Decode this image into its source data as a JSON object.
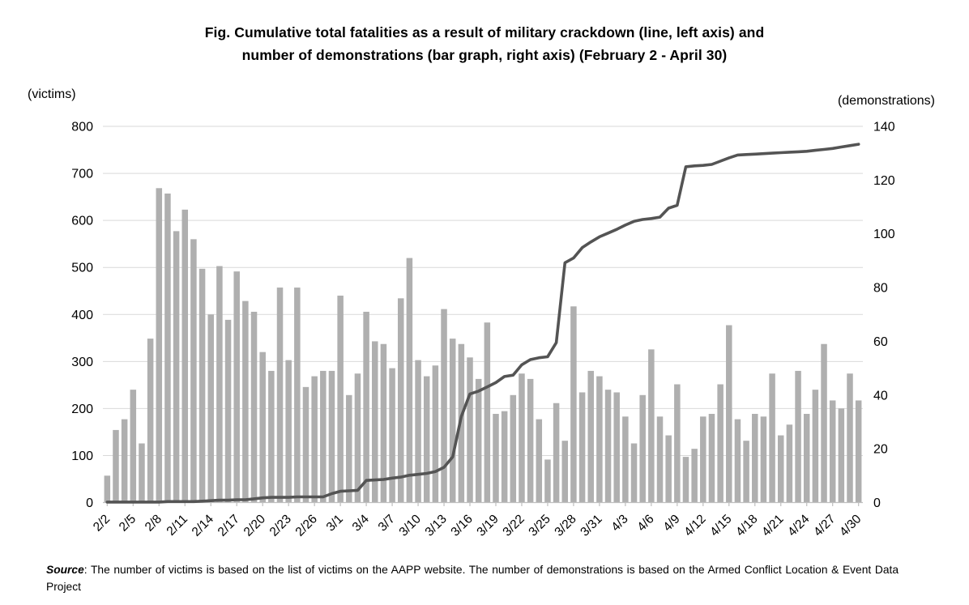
{
  "title": {
    "line1": "Fig. Cumulative total fatalities as a result of military crackdown (line, left axis) and",
    "line2": "number of demonstrations (bar graph, right axis) (February 2 - April 30)"
  },
  "left_axis": {
    "header": "(victims)",
    "ticks": [
      0,
      100,
      200,
      300,
      400,
      500,
      600,
      700,
      800
    ],
    "max": 800
  },
  "right_axis": {
    "header": "(demonstrations)",
    "ticks": [
      0,
      20,
      40,
      60,
      80,
      100,
      120,
      140
    ],
    "max": 140
  },
  "source": {
    "label": "Source",
    "text": ": The number of victims is based on the list of victims on the AAPP website. The number of demonstrations is based on the Armed Conflict Location & Event Data Project"
  },
  "chart_data": {
    "type": "combo",
    "title": "Cumulative total fatalities (line, left axis) and number of demonstrations (bar, right axis)",
    "x_label_interval": 3,
    "ylim_left": [
      0,
      800
    ],
    "ylim_right": [
      0,
      140
    ],
    "grid": "horizontal, every 100 on left axis",
    "legend": "none",
    "colors": {
      "bar": "#afafaf",
      "line": "#545454",
      "grid": "#d9d9d9",
      "axis": "#bfbfbf"
    },
    "categories": [
      "2/2",
      "2/3",
      "2/4",
      "2/5",
      "2/6",
      "2/7",
      "2/8",
      "2/9",
      "2/10",
      "2/11",
      "2/12",
      "2/13",
      "2/14",
      "2/15",
      "2/16",
      "2/17",
      "2/18",
      "2/19",
      "2/20",
      "2/21",
      "2/22",
      "2/23",
      "2/24",
      "2/25",
      "2/26",
      "2/27",
      "2/28",
      "3/1",
      "3/2",
      "3/3",
      "3/4",
      "3/5",
      "3/6",
      "3/7",
      "3/8",
      "3/9",
      "3/10",
      "3/11",
      "3/12",
      "3/13",
      "3/14",
      "3/15",
      "3/16",
      "3/17",
      "3/18",
      "3/19",
      "3/20",
      "3/21",
      "3/22",
      "3/23",
      "3/24",
      "3/25",
      "3/26",
      "3/27",
      "3/28",
      "3/29",
      "3/30",
      "3/31",
      "4/1",
      "4/2",
      "4/3",
      "4/4",
      "4/5",
      "4/6",
      "4/7",
      "4/8",
      "4/9",
      "4/10",
      "4/11",
      "4/12",
      "4/13",
      "4/14",
      "4/15",
      "4/16",
      "4/17",
      "4/18",
      "4/19",
      "4/20",
      "4/21",
      "4/22",
      "4/23",
      "4/24",
      "4/25",
      "4/26",
      "4/27",
      "4/28",
      "4/29",
      "4/30"
    ],
    "series": [
      {
        "name": "Number of demonstrations",
        "type": "bar",
        "axis": "right",
        "values": [
          10,
          27,
          31,
          42,
          22,
          61,
          117,
          115,
          101,
          109,
          98,
          87,
          70,
          88,
          68,
          86,
          75,
          71,
          56,
          49,
          80,
          53,
          80,
          43,
          47,
          49,
          49,
          77,
          40,
          48,
          71,
          60,
          59,
          50,
          76,
          91,
          53,
          47,
          51,
          72,
          61,
          59,
          54,
          46,
          67,
          33,
          34,
          40,
          48,
          46,
          31,
          16,
          37,
          23,
          73,
          41,
          49,
          47,
          42,
          41,
          32,
          22,
          40,
          57,
          32,
          25,
          44,
          17,
          20,
          32,
          33,
          44,
          66,
          31,
          23,
          33,
          32,
          48,
          25,
          29,
          49,
          33,
          42,
          59,
          38,
          35,
          48,
          38
        ]
      },
      {
        "name": "Cumulative total fatalities",
        "type": "line",
        "axis": "left",
        "values": [
          1,
          1,
          1,
          1,
          1,
          1,
          1,
          2,
          2,
          2,
          2,
          3,
          4,
          5,
          5,
          6,
          6,
          8,
          10,
          11,
          11,
          11,
          12,
          12,
          12,
          12,
          19,
          24,
          25,
          26,
          47,
          48,
          49,
          52,
          54,
          58,
          60,
          62,
          66,
          75,
          97,
          183,
          231,
          237,
          246,
          255,
          268,
          271,
          293,
          304,
          308,
          310,
          340,
          510,
          520,
          542,
          554,
          565,
          573,
          581,
          590,
          598,
          602,
          604,
          607,
          626,
          632,
          714,
          716,
          717,
          719,
          726,
          733,
          739,
          740,
          741,
          742,
          743,
          744,
          745,
          746,
          747,
          749,
          751,
          753,
          756,
          759,
          762
        ]
      }
    ]
  }
}
